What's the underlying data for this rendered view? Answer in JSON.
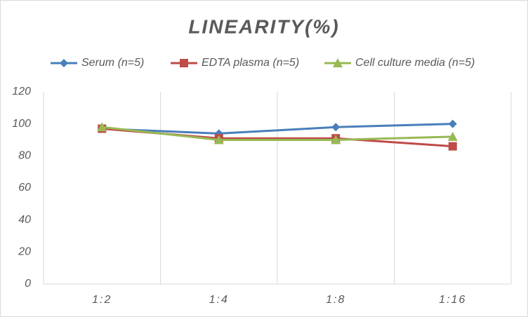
{
  "chart_data": {
    "type": "line",
    "title": "LINEARITY(%)",
    "categories": [
      "1:2",
      "1:4",
      "1:8",
      "1:16"
    ],
    "series": [
      {
        "name": "Serum (n=5)",
        "color": "#4a7ebb",
        "marker": "diamond",
        "values": [
          97,
          94,
          98,
          100
        ]
      },
      {
        "name": "EDTA plasma (n=5)",
        "color": "#be4b48",
        "marker": "square",
        "values": [
          97,
          91,
          91,
          86
        ]
      },
      {
        "name": "Cell culture media (n=5)",
        "color": "#98b954",
        "marker": "triangle",
        "values": [
          98,
          90,
          90,
          92
        ]
      }
    ],
    "ylim": [
      0,
      120
    ],
    "yticks": [
      0,
      20,
      40,
      60,
      80,
      100,
      120
    ],
    "legend": "top"
  }
}
